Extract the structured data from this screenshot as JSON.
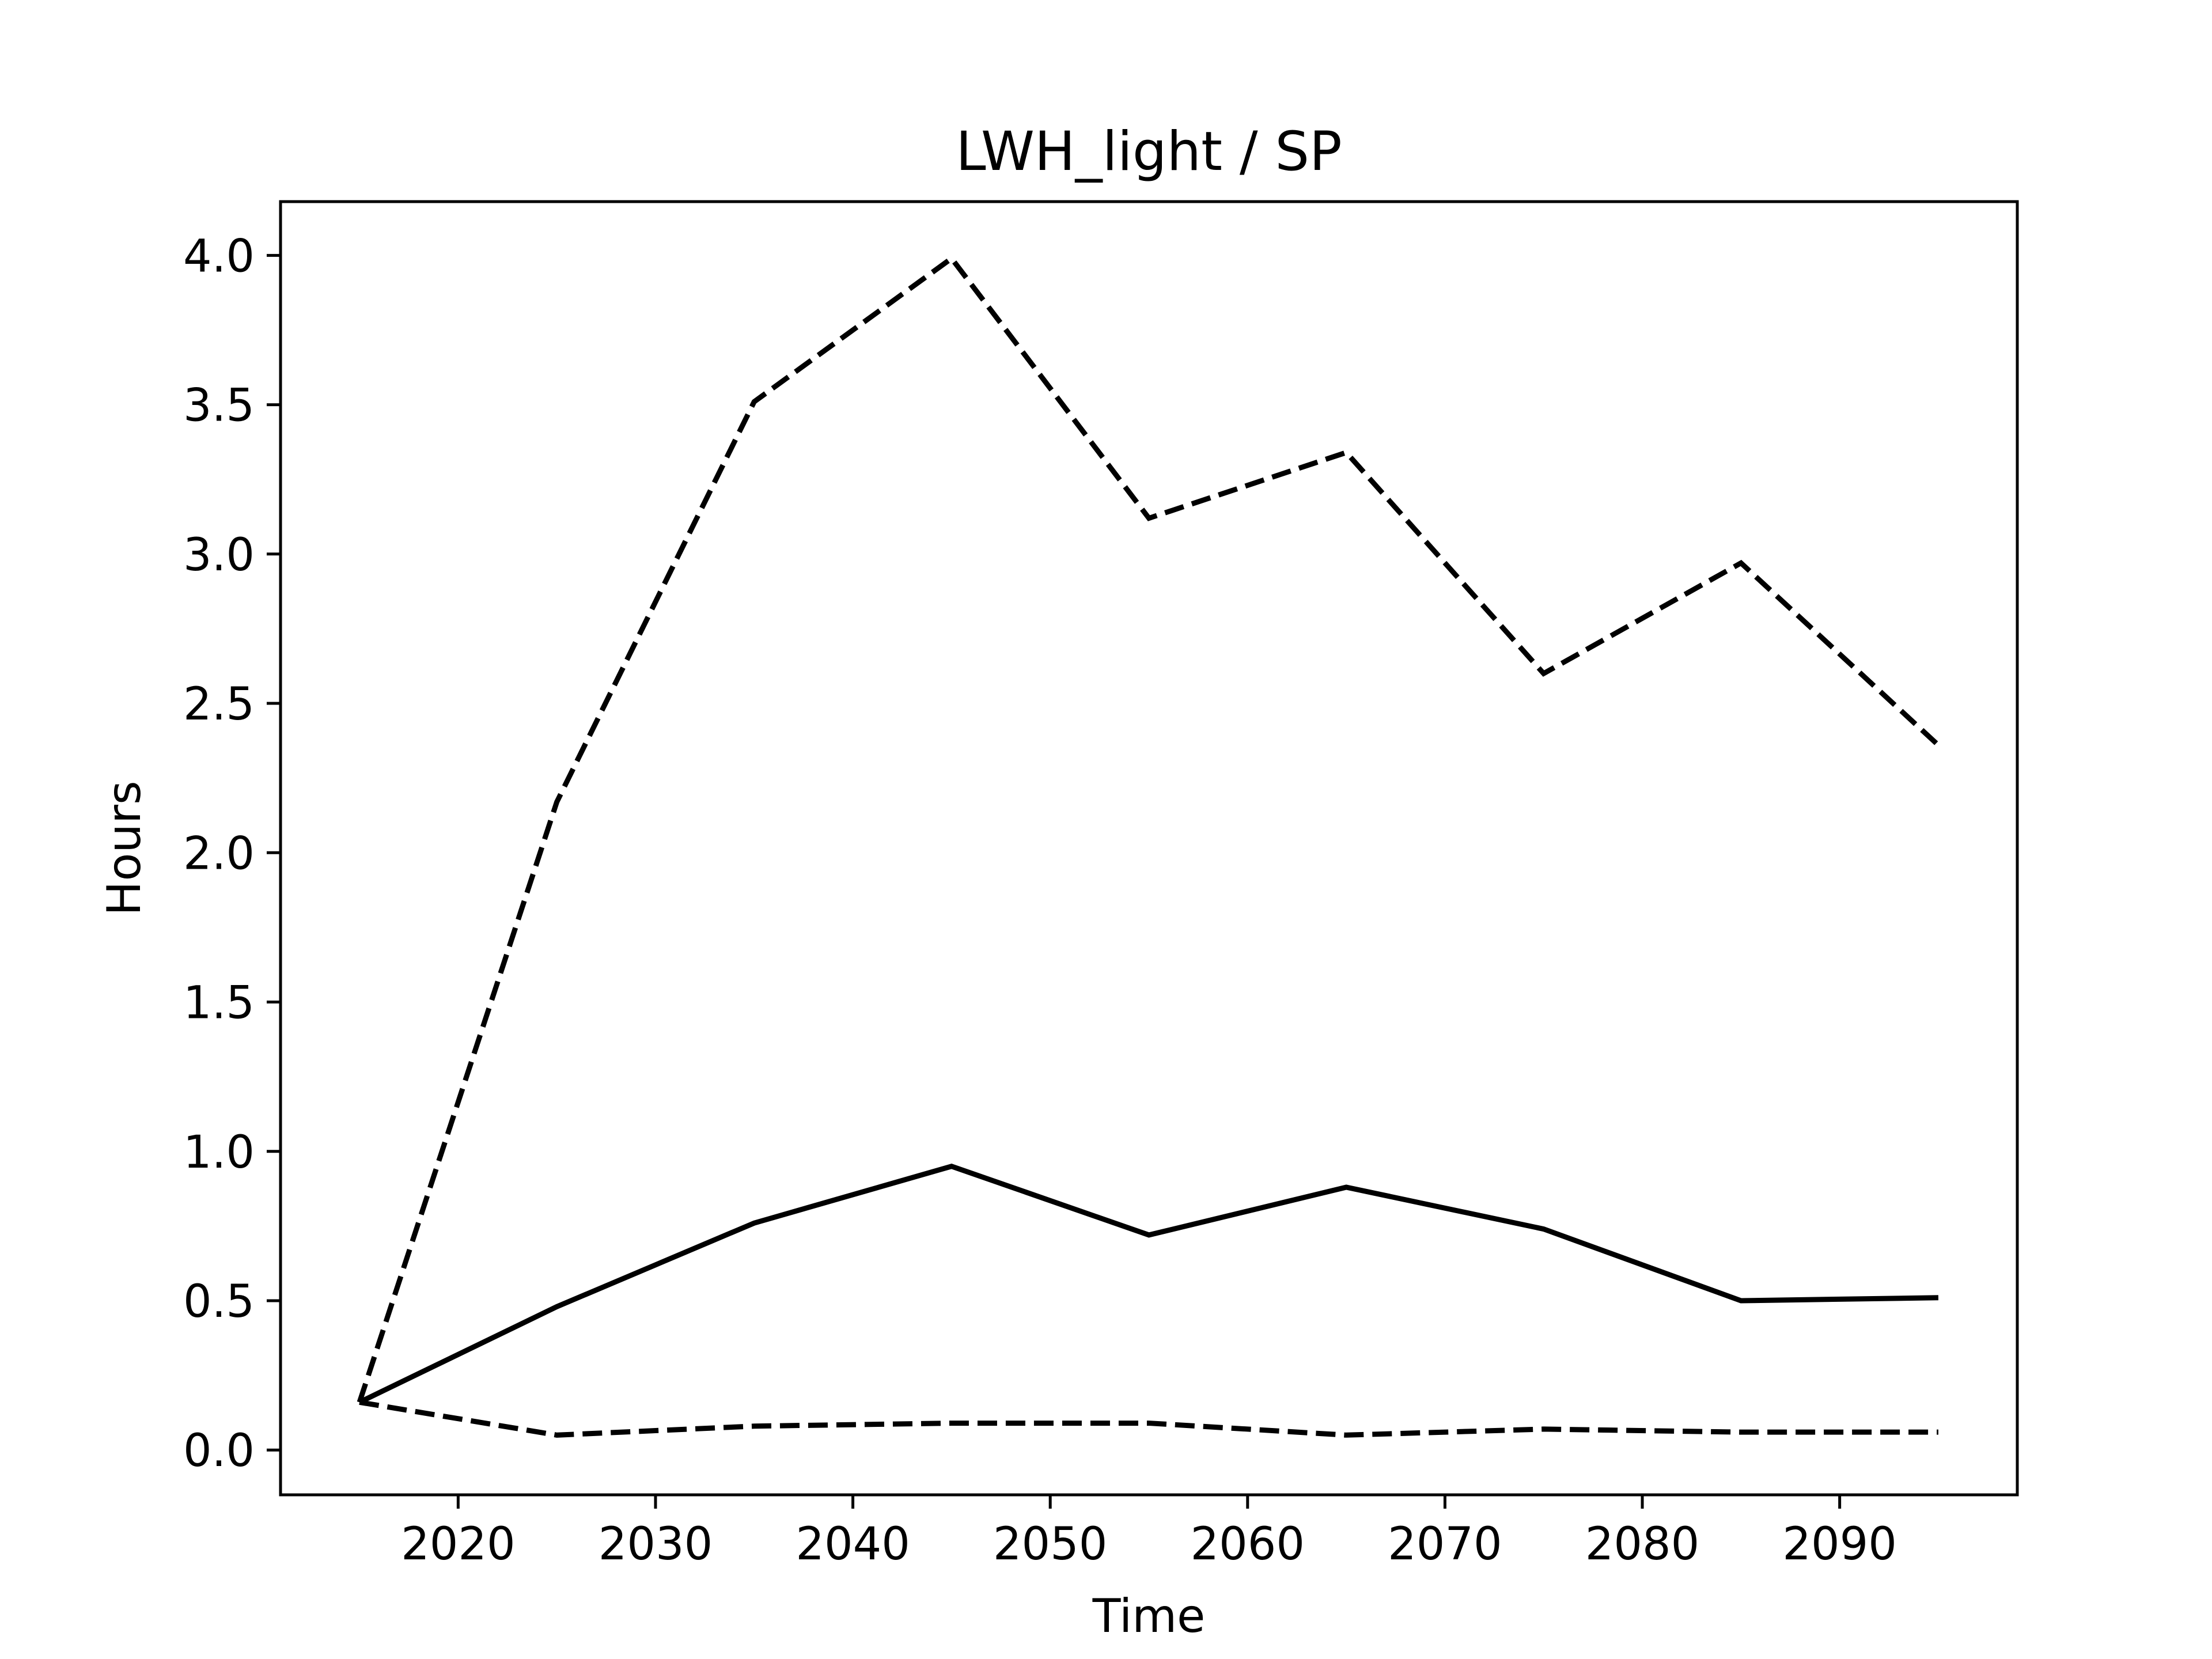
{
  "chart_data": {
    "type": "line",
    "title": "LWH_light / SP",
    "xlabel": "Time",
    "ylabel": "Hours",
    "xlim": [
      2011,
      2099
    ],
    "ylim": [
      -0.15,
      4.18
    ],
    "xticks": [
      2020,
      2030,
      2040,
      2050,
      2060,
      2070,
      2080,
      2090
    ],
    "yticks": [
      0.0,
      0.5,
      1.0,
      1.5,
      2.0,
      2.5,
      3.0,
      3.5,
      4.0
    ],
    "xtick_labels": [
      "2020",
      "2030",
      "2040",
      "2050",
      "2060",
      "2070",
      "2080",
      "2090"
    ],
    "ytick_labels": [
      "0.0",
      "0.5",
      "1.0",
      "1.5",
      "2.0",
      "2.5",
      "3.0",
      "3.5",
      "4.0"
    ],
    "grid": false,
    "x": [
      2015,
      2025,
      2035,
      2045,
      2055,
      2065,
      2075,
      2085,
      2095
    ],
    "series": [
      {
        "style": "dashed",
        "color": "#000000",
        "values": [
          0.16,
          2.17,
          3.51,
          3.99,
          3.12,
          3.34,
          2.6,
          2.97,
          2.36
        ]
      },
      {
        "style": "solid",
        "color": "#000000",
        "values": [
          0.16,
          0.48,
          0.76,
          0.95,
          0.72,
          0.88,
          0.74,
          0.5,
          0.51
        ]
      },
      {
        "style": "dashed",
        "color": "#000000",
        "values": [
          0.16,
          0.05,
          0.08,
          0.09,
          0.09,
          0.05,
          0.07,
          0.06,
          0.06
        ]
      }
    ]
  }
}
